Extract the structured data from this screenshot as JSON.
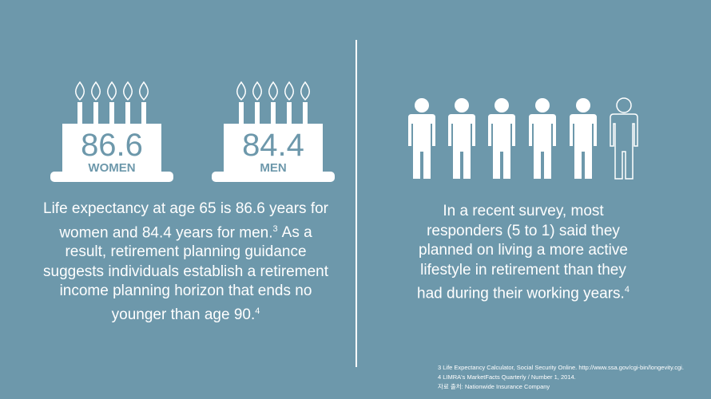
{
  "left": {
    "cakes": [
      {
        "number": "86.6",
        "label": "WOMEN"
      },
      {
        "number": "84.4",
        "label": "MEN"
      }
    ],
    "paragraph": [
      "Life expectancy at age 65 is 86.6 years for women and 84.4 years for men.",
      "3",
      "As a result, retirement planning guidance suggests individuals establish a retirement income planning horizon that ends no younger than age 90.",
      "4"
    ]
  },
  "right": {
    "paragraph": [
      "In a recent survey, most responders (5 to 1) said they planned on living a more active lifestyle in retirement than they had during their working years.",
      "4"
    ]
  },
  "footnotes": [
    "3 Life Expectancy Calculator, Social Security Online. http://www.ssa.gov/cgi-bin/longevity.cgi.",
    "4 LIMRA's MarketFacts Quarterly / Number 1, 2014.",
    "자료 출처: Nationwide Insurance Company"
  ]
}
